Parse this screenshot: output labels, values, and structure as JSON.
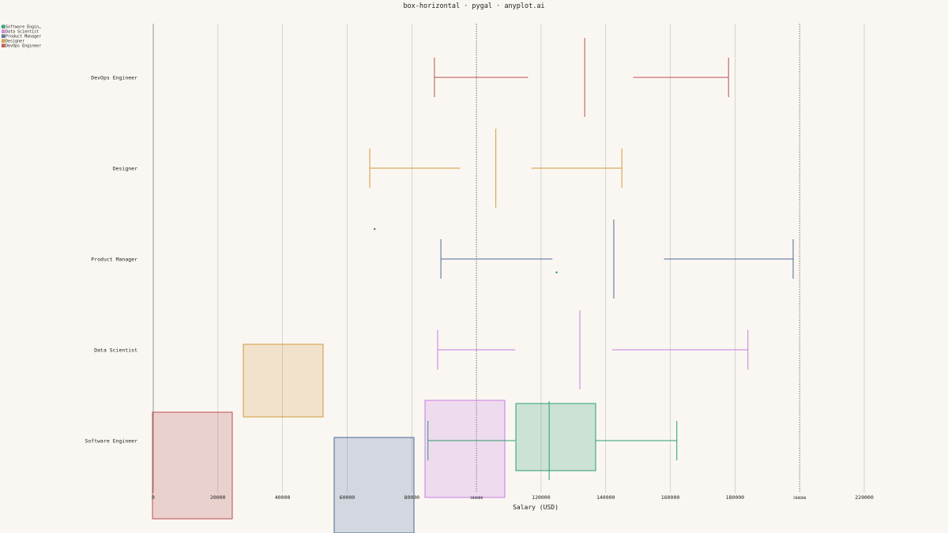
{
  "chart_data": {
    "type": "box",
    "orientation": "horizontal",
    "title": "box-horizontal · pygal · anyplot.ai",
    "xlabel": "Salary (USD)",
    "ylabel": "",
    "xlim": [
      0,
      220000
    ],
    "x_ticks": [
      "0",
      "20000",
      "40000",
      "60000",
      "80000",
      "100000",
      "120000",
      "140000",
      "160000",
      "180000",
      "200000",
      "220000"
    ],
    "major_ticks": [
      "100000",
      "200000"
    ],
    "grid": true,
    "legend_position": "top-left",
    "categories": [
      "DevOps Engineer",
      "Designer",
      "Product Manager",
      "Data Scientist",
      "Software Engineer"
    ],
    "series": [
      {
        "name": "Software Engin…",
        "color": "#2a9d6f",
        "whisker_low": 85000,
        "q1": 112000,
        "median": 122500,
        "q3": 137000,
        "whisker_high": 162000,
        "outliers": [
          124800
        ]
      },
      {
        "name": "Data Scientist",
        "color": "#c77ce0",
        "whisker_low": 88000,
        "q1": 112000,
        "median": 132000,
        "q3": 142000,
        "whisker_high": 184000,
        "outliers": []
      },
      {
        "name": "Product Manager",
        "color": "#4a6a99",
        "whisker_low": 89000,
        "q1": 123500,
        "median": 142500,
        "q3": 158000,
        "whisker_high": 198000,
        "outliers": [
          68500
        ]
      },
      {
        "name": "Designer",
        "color": "#d09a3e",
        "whisker_low": 67000,
        "q1": 95000,
        "median": 106000,
        "q3": 117000,
        "whisker_high": 145000,
        "outliers": []
      },
      {
        "name": "DevOps Engineer",
        "color": "#b84f4f",
        "whisker_low": 87000,
        "q1": 116000,
        "median": 133500,
        "q3": 148500,
        "whisker_high": 178000,
        "outliers": []
      }
    ]
  }
}
